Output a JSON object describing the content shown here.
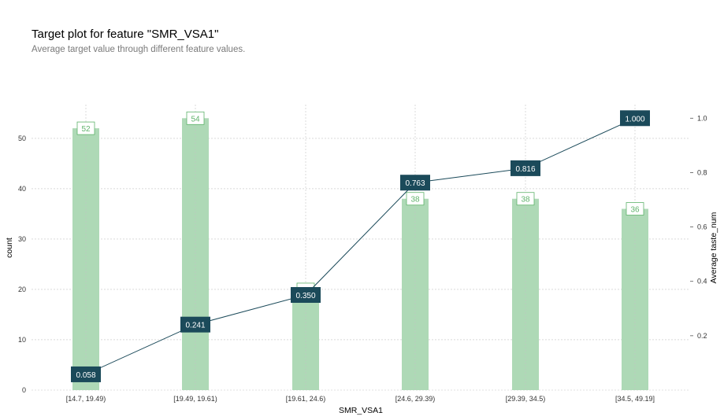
{
  "title": "Target plot for feature \"SMR_VSA1\"",
  "subtitle": "Average target value through different feature values.",
  "chart_data": {
    "type": "bar",
    "categories": [
      "[14.7, 19.49)",
      "[19.49, 19.61)",
      "[19.61, 24.6)",
      "[24.6, 29.39)",
      "[29.39, 34.5)",
      "[34.5, 49.19]"
    ],
    "series": [
      {
        "name": "count",
        "type": "bar",
        "axis": "left",
        "values": [
          52,
          54,
          20,
          38,
          38,
          36
        ],
        "labels": [
          "52",
          "54",
          "20",
          "38",
          "38",
          "36"
        ]
      },
      {
        "name": "Average taste_num",
        "type": "line",
        "axis": "right",
        "values": [
          0.058,
          0.241,
          0.35,
          0.763,
          0.816,
          1.0
        ],
        "labels": [
          "0.058",
          "0.241",
          "0.350",
          "0.763",
          "0.816",
          "1.000"
        ]
      }
    ],
    "xlabel": "SMR_VSA1",
    "ylabel": "count",
    "y2label": "Average taste_num",
    "ylim": [
      0,
      56.7
    ],
    "y2lim": [
      0.0,
      1.05
    ],
    "yticks": [
      "0",
      "10",
      "20",
      "30",
      "40",
      "50"
    ],
    "y2ticks": [
      "0.2",
      "0.4",
      "0.6",
      "0.8",
      "1.0"
    ],
    "grid": true,
    "colors": {
      "bar": "#aed9b6",
      "bar_label": "#5fb36b",
      "line": "#1b4a5a",
      "grid": "#c4c4c4"
    }
  }
}
